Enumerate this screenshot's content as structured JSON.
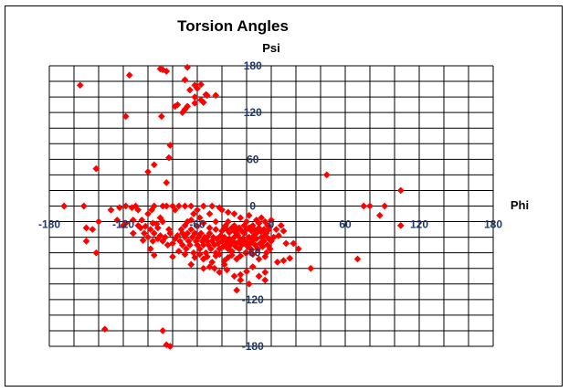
{
  "chart_data": {
    "type": "scatter",
    "title": "Torsion Angles",
    "xlabel": "Phi",
    "ylabel": "Psi",
    "xlim": [
      -180,
      180
    ],
    "ylim": [
      -180,
      180
    ],
    "grid": true,
    "legend": "none",
    "x_ticks": [
      "-180",
      "-120",
      "-60",
      "0",
      "60",
      "120",
      "180"
    ],
    "y_ticks": [
      "180",
      "120",
      "60",
      "0",
      "-60",
      "-120",
      "-180"
    ],
    "marker": "diamond",
    "colors": {
      "marker": "#ff0000",
      "tick_label": "#1f3864",
      "grid": "#000000"
    },
    "series": [
      {
        "values": [
          [
            -155,
            155
          ],
          [
            -115,
            168
          ],
          [
            -90,
            176
          ],
          [
            -88,
            175
          ],
          [
            -85,
            173
          ],
          [
            -68,
            178
          ],
          [
            -70,
            162
          ],
          [
            -62,
            155
          ],
          [
            -66,
            149
          ],
          [
            -60,
            151
          ],
          [
            -57,
            156
          ],
          [
            -62,
            140
          ],
          [
            -53,
            143
          ],
          [
            -52,
            142
          ],
          [
            -45,
            142
          ],
          [
            -68,
            128
          ],
          [
            -76,
            130
          ],
          [
            -72,
            120
          ],
          [
            -78,
            128
          ],
          [
            -62,
            132
          ],
          [
            -55,
            133
          ],
          [
            -57,
            136
          ],
          [
            -70,
            124
          ],
          [
            -118,
            115
          ],
          [
            -89,
            115
          ],
          [
            -82,
            78
          ],
          [
            -83,
            62
          ],
          [
            -95,
            53
          ],
          [
            -100,
            44
          ],
          [
            -142,
            48
          ],
          [
            -85,
            30
          ],
          [
            -95,
            -63
          ],
          [
            -168,
            0
          ],
          [
            -152,
            0
          ],
          [
            -150,
            -28
          ],
          [
            -150,
            -45
          ],
          [
            -142,
            -60
          ],
          [
            -130,
            -5
          ],
          [
            -123,
            -2
          ],
          [
            -118,
            0
          ],
          [
            -113,
            -2
          ],
          [
            -110,
            0
          ],
          [
            -108,
            -5
          ],
          [
            -105,
            -18
          ],
          [
            -103,
            -35
          ],
          [
            -100,
            -10
          ],
          [
            -97,
            -5
          ],
          [
            -95,
            0
          ],
          [
            -93,
            -23
          ],
          [
            -90,
            -15
          ],
          [
            -88,
            0
          ],
          [
            -85,
            0
          ],
          [
            -83,
            -30
          ],
          [
            -80,
            0
          ],
          [
            -78,
            -5
          ],
          [
            -75,
            0
          ],
          [
            -72,
            -35
          ],
          [
            -70,
            0
          ],
          [
            -68,
            -20
          ],
          [
            -65,
            0
          ],
          [
            -63,
            -10
          ],
          [
            -60,
            -5
          ],
          [
            -58,
            -15
          ],
          [
            -55,
            0
          ],
          [
            -52,
            -40
          ],
          [
            -50,
            -10
          ],
          [
            -48,
            0
          ],
          [
            -45,
            -30
          ],
          [
            -42,
            -2
          ],
          [
            -40,
            -5
          ],
          [
            -37,
            -25
          ],
          [
            -35,
            -20
          ],
          [
            -30,
            -25
          ],
          [
            -22,
            -48
          ],
          [
            -118,
            -22
          ],
          [
            -112,
            -18
          ],
          [
            -108,
            -25
          ],
          [
            -106,
            -28
          ],
          [
            -104,
            -44
          ],
          [
            -112,
            -35
          ],
          [
            -100,
            -40
          ],
          [
            -98,
            -55
          ],
          [
            -96,
            -45
          ],
          [
            -95,
            -35
          ],
          [
            -92,
            -42
          ],
          [
            -90,
            -38
          ],
          [
            -88,
            -45
          ],
          [
            -86,
            -40
          ],
          [
            -84,
            -50
          ],
          [
            -82,
            -35
          ],
          [
            -80,
            -48
          ],
          [
            -78,
            -42
          ],
          [
            -76,
            -38
          ],
          [
            -74,
            -45
          ],
          [
            -73,
            -30
          ],
          [
            -72,
            -50
          ],
          [
            -70,
            -40
          ],
          [
            -69,
            -55
          ],
          [
            -68,
            -35
          ],
          [
            -67,
            -45
          ],
          [
            -66,
            -50
          ],
          [
            -65,
            -30
          ],
          [
            -64,
            -40
          ],
          [
            -63,
            -60
          ],
          [
            -62,
            -35
          ],
          [
            -61,
            -45
          ],
          [
            -60,
            -50
          ],
          [
            -59,
            -40
          ],
          [
            -58,
            -55
          ],
          [
            -57,
            -35
          ],
          [
            -56,
            -45
          ],
          [
            -55,
            -50
          ],
          [
            -54,
            -40
          ],
          [
            -53,
            -60
          ],
          [
            -52,
            -45
          ],
          [
            -51,
            -50
          ],
          [
            -50,
            -35
          ],
          [
            -49,
            -55
          ],
          [
            -48,
            -45
          ],
          [
            -47,
            -40
          ],
          [
            -46,
            -50
          ],
          [
            -45,
            -60
          ],
          [
            -44,
            -42
          ],
          [
            -43,
            -48
          ],
          [
            -42,
            -55
          ],
          [
            -41,
            -38
          ],
          [
            -40,
            -45
          ],
          [
            -39,
            -52
          ],
          [
            -38,
            -40
          ],
          [
            -37,
            -50
          ],
          [
            -36,
            -46
          ],
          [
            -35,
            -55
          ],
          [
            -34,
            -42
          ],
          [
            -33,
            -50
          ],
          [
            -32,
            -58
          ],
          [
            -31,
            -45
          ],
          [
            -30,
            -40
          ],
          [
            -29,
            -52
          ],
          [
            -28,
            -48
          ],
          [
            -27,
            -38
          ],
          [
            -26,
            -55
          ],
          [
            -25,
            -44
          ],
          [
            -24,
            -50
          ],
          [
            -23,
            -42
          ],
          [
            -22,
            -35
          ],
          [
            -21,
            -60
          ],
          [
            -20,
            -46
          ],
          [
            -19,
            -52
          ],
          [
            -18,
            -40
          ],
          [
            -17,
            -48
          ],
          [
            -16,
            -56
          ],
          [
            -15,
            -44
          ],
          [
            -14,
            -38
          ],
          [
            -13,
            -50
          ],
          [
            -12,
            -42
          ],
          [
            -11,
            -55
          ],
          [
            -10,
            -30
          ],
          [
            -9,
            -48
          ],
          [
            -8,
            -40
          ],
          [
            -7,
            -52
          ],
          [
            -6,
            -45
          ],
          [
            -5,
            -38
          ],
          [
            -4,
            -60
          ],
          [
            -3,
            -50
          ],
          [
            -2,
            -42
          ],
          [
            -1,
            -55
          ],
          [
            0,
            -45
          ],
          [
            2,
            -40
          ],
          [
            4,
            -30
          ],
          [
            6,
            -38
          ],
          [
            8,
            -25
          ],
          [
            10,
            -32
          ],
          [
            -62,
            -66
          ],
          [
            -58,
            -62
          ],
          [
            -55,
            -68
          ],
          [
            -52,
            -65
          ],
          [
            -48,
            -72
          ],
          [
            -45,
            -64
          ],
          [
            -42,
            -62
          ],
          [
            -38,
            -70
          ],
          [
            -35,
            -66
          ],
          [
            -32,
            -63
          ],
          [
            -28,
            -68
          ],
          [
            -25,
            -64
          ],
          [
            -20,
            -60
          ],
          [
            -15,
            -62
          ],
          [
            -10,
            -68
          ],
          [
            -5,
            -65
          ],
          [
            5,
            -72
          ],
          [
            10,
            -70
          ],
          [
            15,
            -67
          ],
          [
            -70,
            -62
          ],
          [
            -75,
            -58
          ],
          [
            -80,
            -65
          ],
          [
            -46,
            -80
          ],
          [
            -42,
            -85
          ],
          [
            -38,
            -75
          ],
          [
            -36,
            -82
          ],
          [
            -30,
            -90
          ],
          [
            -25,
            -88
          ],
          [
            -20,
            -84
          ],
          [
            -5,
            -85
          ],
          [
            -10,
            -90
          ],
          [
            -15,
            -78
          ],
          [
            -25,
            -95
          ],
          [
            -45,
            -20
          ],
          [
            -50,
            -28
          ],
          [
            -55,
            -22
          ],
          [
            -60,
            -26
          ],
          [
            -65,
            -18
          ],
          [
            -70,
            -25
          ],
          [
            -35,
            -8
          ],
          [
            -30,
            -10
          ],
          [
            -25,
            -15
          ],
          [
            -20,
            -20
          ],
          [
            -18,
            -12
          ],
          [
            -15,
            -25
          ],
          [
            -12,
            -18
          ],
          [
            -10,
            -22
          ],
          [
            -8,
            -15
          ],
          [
            -5,
            -20
          ],
          [
            -3,
            -25
          ],
          [
            0,
            -18
          ],
          [
            -28,
            -35
          ],
          [
            -26,
            -28
          ],
          [
            -24,
            -32
          ],
          [
            -22,
            -25
          ],
          [
            -20,
            -30
          ],
          [
            -18,
            -28
          ],
          [
            -16,
            -32
          ],
          [
            -14,
            -30
          ],
          [
            -12,
            -35
          ],
          [
            -10,
            -28
          ],
          [
            -8,
            -33
          ],
          [
            -6,
            -30
          ],
          [
            -4,
            -35
          ],
          [
            -2,
            -30
          ],
          [
            -40,
            -32
          ],
          [
            -38,
            -28
          ],
          [
            -36,
            -30
          ],
          [
            -34,
            -34
          ],
          [
            -32,
            -28
          ],
          [
            -30,
            -32
          ],
          [
            -28,
            -30
          ],
          [
            -65,
            -75
          ],
          [
            -55,
            -80
          ],
          [
            -50,
            -78
          ],
          [
            -5,
            -95
          ],
          [
            18,
            -48
          ],
          [
            22,
            -55
          ],
          [
            12,
            -48
          ],
          [
            -18,
            -100
          ],
          [
            -28,
            -108
          ],
          [
            -88,
            -160
          ],
          [
            -85,
            -178
          ],
          [
            -82,
            -180
          ],
          [
            -135,
            -158
          ],
          [
            -120,
            -25
          ],
          [
            -125,
            -18
          ],
          [
            -140,
            -20
          ],
          [
            -145,
            -30
          ],
          [
            -88,
            -20
          ],
          [
            -92,
            -28
          ],
          [
            -96,
            -22
          ],
          [
            -98,
            -30
          ],
          [
            -102,
            -26
          ],
          [
            32,
            -80
          ],
          [
            45,
            40
          ],
          [
            75,
            0
          ],
          [
            80,
            0
          ],
          [
            92,
            0
          ],
          [
            88,
            -12
          ],
          [
            70,
            -68
          ],
          [
            105,
            20
          ],
          [
            105,
            -25
          ]
        ]
      }
    ]
  }
}
